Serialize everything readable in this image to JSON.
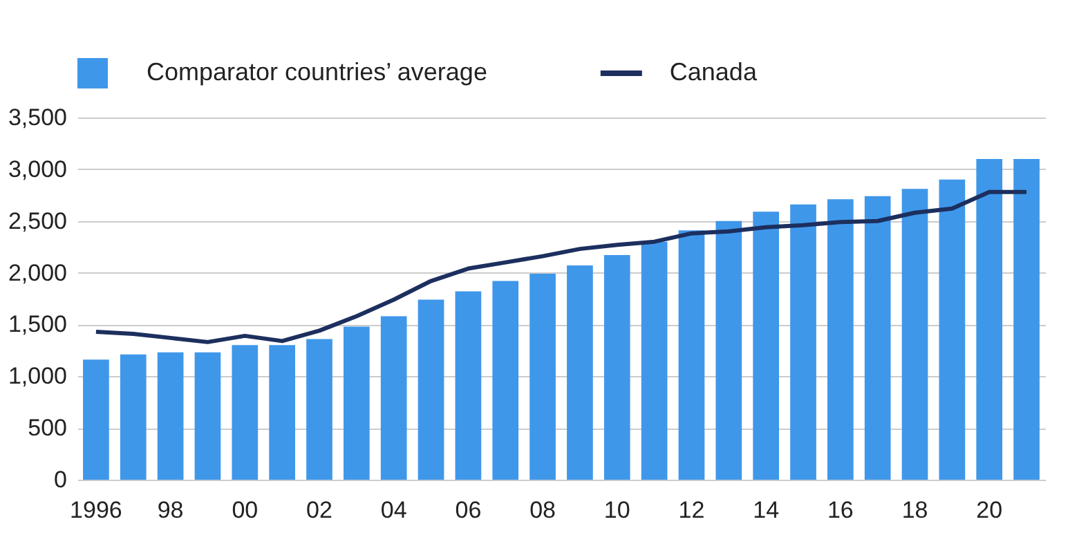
{
  "chart_data": {
    "type": "bar",
    "categories": [
      "1996",
      null,
      "98",
      null,
      "00",
      null,
      "02",
      null,
      "04",
      null,
      "06",
      null,
      "08",
      null,
      "10",
      null,
      "12",
      null,
      "14",
      null,
      "16",
      null,
      "18",
      null,
      "20",
      null
    ],
    "series": [
      {
        "name": "Comparator countries’ average",
        "color": "#3f97ea",
        "values": [
          1160,
          1210,
          1230,
          1230,
          1300,
          1300,
          1360,
          1480,
          1580,
          1740,
          1820,
          1920,
          1990,
          2070,
          2170,
          2300,
          2410,
          2500,
          2590,
          2660,
          2710,
          2740,
          2810,
          2900,
          3100,
          3100
        ]
      },
      {
        "name": "Canada",
        "type": "line",
        "color": "#1c2f5e",
        "values": [
          1430,
          1410,
          1370,
          1330,
          1390,
          1340,
          1440,
          1580,
          1740,
          1920,
          2040,
          2100,
          2160,
          2230,
          2270,
          2300,
          2380,
          2400,
          2440,
          2460,
          2490,
          2500,
          2580,
          2620,
          2780,
          2780
        ]
      }
    ],
    "ylim": [
      0,
      3500
    ],
    "yticks": [
      0,
      500,
      {
        "value": 1000,
        "label": "1,000"
      },
      {
        "value": 1500,
        "label": "1,500"
      },
      {
        "value": 2000,
        "label": "2,000"
      },
      {
        "value": 2500,
        "label": "2,500"
      },
      {
        "value": 3000,
        "label": "3,000"
      },
      {
        "value": 3500,
        "label": "3,500"
      }
    ],
    "grid": "y",
    "legend": "top left"
  }
}
